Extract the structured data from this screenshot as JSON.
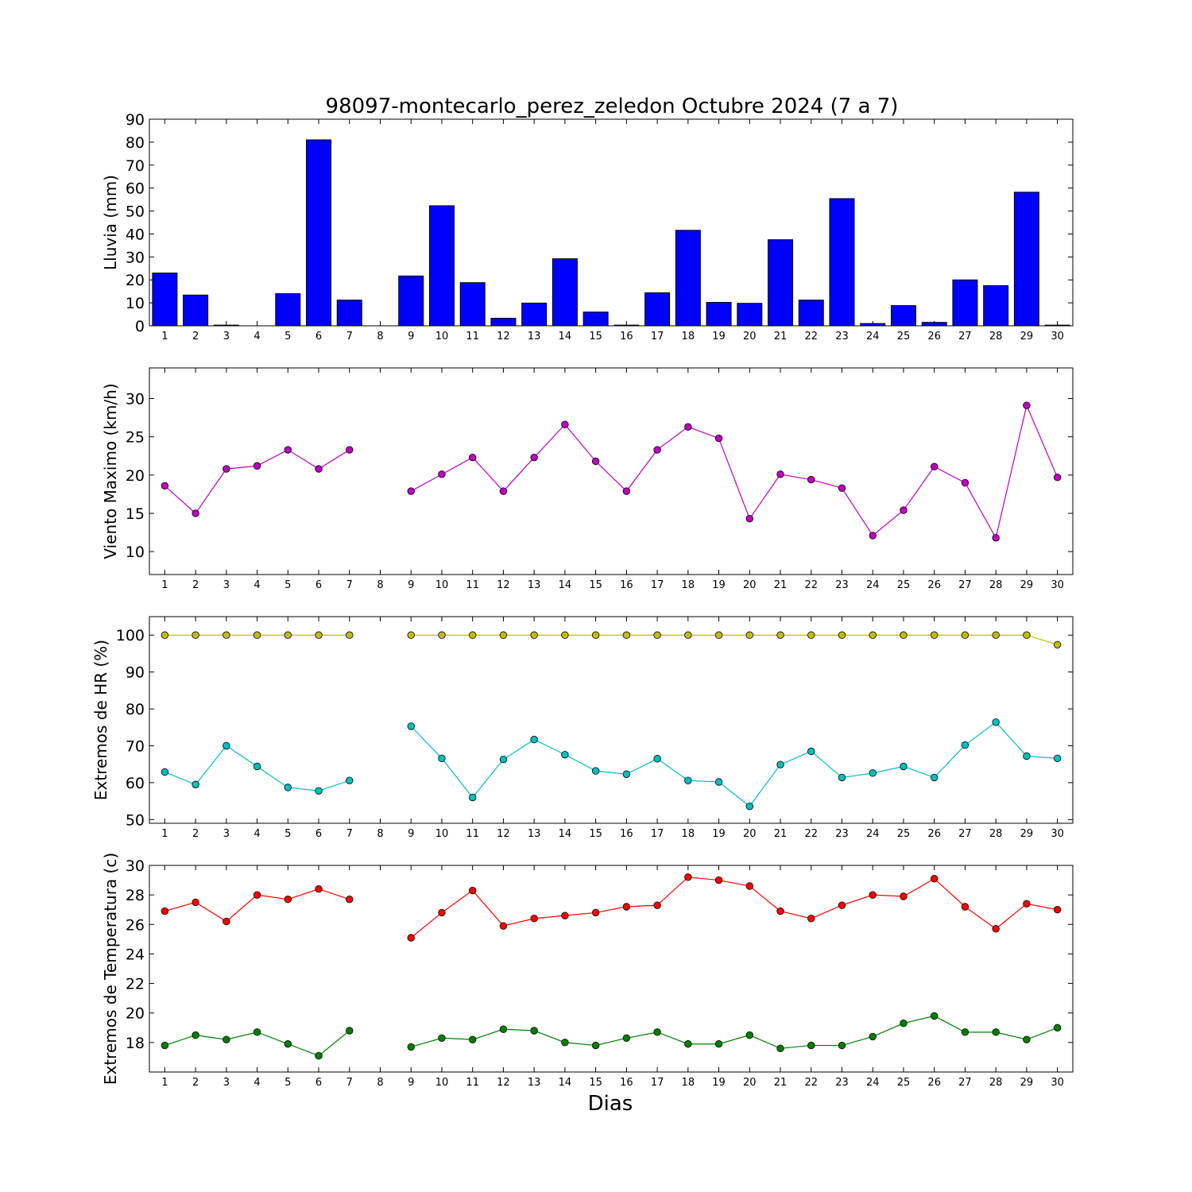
{
  "title": "98097-montecarlo_perez_zeledon Octubre 2024  (7 a 7)",
  "xlabel": "Dias",
  "days": [
    1,
    2,
    3,
    4,
    5,
    6,
    7,
    8,
    9,
    10,
    11,
    12,
    13,
    14,
    15,
    16,
    17,
    18,
    19,
    20,
    21,
    22,
    23,
    24,
    25,
    26,
    27,
    28,
    29,
    30
  ],
  "chart_data": [
    {
      "type": "bar",
      "ylabel": "Lluvia (mm)",
      "ylim": [
        0,
        90
      ],
      "yticks": [
        0,
        10,
        20,
        30,
        40,
        50,
        60,
        70,
        80,
        90
      ],
      "grid": false,
      "x": [
        1,
        2,
        3,
        4,
        5,
        6,
        7,
        8,
        9,
        10,
        11,
        12,
        13,
        14,
        15,
        16,
        17,
        18,
        19,
        20,
        21,
        22,
        23,
        24,
        25,
        26,
        27,
        28,
        29,
        30
      ],
      "series": [
        {
          "color": "#0000ff",
          "values": [
            23,
            13.4,
            0.3,
            0,
            14,
            81,
            11.2,
            null,
            21.7,
            52.3,
            18.8,
            3.3,
            9.9,
            29.2,
            6,
            0.3,
            14.4,
            41.6,
            10.2,
            9.8,
            37.5,
            11.2,
            55.4,
            1,
            8.8,
            1.5,
            20,
            17.5,
            58.2,
            0.3
          ]
        }
      ]
    },
    {
      "type": "line",
      "ylabel": "Viento Maximo (km/h)",
      "ylim": [
        7,
        34
      ],
      "yticks": [
        10,
        15,
        20,
        25,
        30
      ],
      "grid": false,
      "x": [
        1,
        2,
        3,
        4,
        5,
        6,
        7,
        8,
        9,
        10,
        11,
        12,
        13,
        14,
        15,
        16,
        17,
        18,
        19,
        20,
        21,
        22,
        23,
        24,
        25,
        26,
        27,
        28,
        29,
        30
      ],
      "series": [
        {
          "color": "#bf00bf",
          "values": [
            18.6,
            15,
            20.8,
            21.2,
            23.3,
            20.8,
            23.3,
            null,
            17.9,
            20.1,
            22.3,
            17.9,
            22.3,
            26.6,
            21.8,
            17.9,
            23.3,
            26.3,
            24.8,
            14.3,
            20.1,
            19.4,
            18.3,
            12.1,
            15.4,
            21.1,
            19,
            11.8,
            29.1,
            19.7
          ]
        }
      ]
    },
    {
      "type": "line",
      "ylabel": "Extremos de HR (%)",
      "ylim": [
        49,
        105
      ],
      "yticks": [
        50,
        60,
        70,
        80,
        90,
        100
      ],
      "grid": false,
      "x": [
        1,
        2,
        3,
        4,
        5,
        6,
        7,
        8,
        9,
        10,
        11,
        12,
        13,
        14,
        15,
        16,
        17,
        18,
        19,
        20,
        21,
        22,
        23,
        24,
        25,
        26,
        27,
        28,
        29,
        30
      ],
      "series": [
        {
          "color": "#bfbf00",
          "values": [
            100,
            100,
            100,
            100,
            100,
            100,
            100,
            null,
            100,
            100,
            100,
            100,
            100,
            100,
            100,
            100,
            100,
            100,
            100,
            100,
            100,
            100,
            100,
            100,
            100,
            100,
            100,
            100,
            100,
            97.4
          ]
        },
        {
          "color": "#00bfbf",
          "values": [
            62.9,
            59.5,
            70,
            64.4,
            58.7,
            57.8,
            60.6,
            null,
            75.3,
            66.6,
            56,
            66.3,
            71.7,
            67.6,
            63.2,
            62.3,
            66.5,
            60.6,
            60.2,
            53.6,
            64.9,
            68.5,
            61.4,
            62.6,
            64.4,
            61.4,
            70.2,
            76.4,
            67.2,
            66.6
          ]
        }
      ]
    },
    {
      "type": "line",
      "ylabel": "Extremos de Temperatura (c)",
      "ylim": [
        16,
        30
      ],
      "yticks": [
        18,
        20,
        22,
        24,
        26,
        28,
        30
      ],
      "grid": false,
      "x": [
        1,
        2,
        3,
        4,
        5,
        6,
        7,
        8,
        9,
        10,
        11,
        12,
        13,
        14,
        15,
        16,
        17,
        18,
        19,
        20,
        21,
        22,
        23,
        24,
        25,
        26,
        27,
        28,
        29,
        30
      ],
      "series": [
        {
          "color": "#ff0000",
          "values": [
            26.9,
            27.5,
            26.2,
            28,
            27.7,
            28.4,
            27.7,
            null,
            25.1,
            26.8,
            28.3,
            25.9,
            26.4,
            26.6,
            26.8,
            27.2,
            27.3,
            29.2,
            29,
            28.6,
            26.9,
            26.4,
            27.3,
            28,
            27.9,
            29.1,
            27.2,
            25.7,
            27.4,
            27
          ]
        },
        {
          "color": "#008000",
          "values": [
            17.8,
            18.5,
            18.2,
            18.7,
            17.9,
            17.1,
            18.8,
            null,
            17.7,
            18.3,
            18.2,
            18.9,
            18.8,
            18,
            17.8,
            18.3,
            18.7,
            17.9,
            17.9,
            18.5,
            17.6,
            17.8,
            17.8,
            18.4,
            19.3,
            19.8,
            18.7,
            18.7,
            18.2,
            19
          ]
        }
      ]
    }
  ]
}
